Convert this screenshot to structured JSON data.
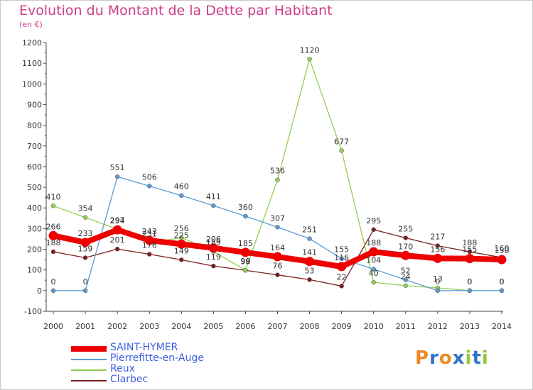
{
  "title": "Evolution du Montant de la Dette par Habitant",
  "unit": "(en €)",
  "logo": "Proxiti",
  "chart_data": {
    "type": "line",
    "title": "Evolution du Montant de la Dette par Habitant",
    "ylabel": "(en €)",
    "xlabel": "",
    "x": [
      "2000",
      "2001",
      "2002",
      "2003",
      "2004",
      "2005",
      "2006",
      "2007",
      "2008",
      "2009",
      "2010",
      "2011",
      "2012",
      "2013",
      "2014"
    ],
    "ylim": [
      -100,
      1200
    ],
    "yticks": [
      "-100",
      "0",
      "100",
      "200",
      "300",
      "400",
      "500",
      "600",
      "700",
      "800",
      "900",
      "1000",
      "1100",
      "1200"
    ],
    "grid": false,
    "legend_position": "bottom-left",
    "series": [
      {
        "name": "SAINT-HYMER",
        "color": "#ee0000",
        "values": [
          266,
          233,
          294,
          243,
          225,
          206,
          185,
          164,
          141,
          116,
          188,
          170,
          156,
          155,
          150
        ],
        "labels": [
          "266",
          "233",
          "294",
          "243",
          "225",
          "206",
          "185",
          "164",
          "141",
          "116",
          "188",
          "170",
          "156",
          "155",
          "150"
        ]
      },
      {
        "name": "Pierrefitte-en-Auge",
        "color": "#5b9bd5",
        "values": [
          0,
          0,
          551,
          506,
          460,
          411,
          360,
          307,
          251,
          155,
          104,
          52,
          0,
          0,
          0
        ],
        "labels": [
          "0",
          "0",
          "551",
          "506",
          "460",
          "411",
          "360",
          "307",
          "251",
          "155",
          "104",
          "52",
          "0",
          "0",
          "0"
        ]
      },
      {
        "name": "Reux",
        "color": "#92d050",
        "values": [
          410,
          354,
          297,
          231,
          256,
          189,
          99,
          536,
          1120,
          677,
          40,
          24,
          13,
          0,
          0
        ],
        "labels": [
          "410",
          "354",
          "297",
          "231",
          "256",
          "189",
          "99",
          "536",
          "1120",
          "677",
          "40",
          "24",
          "13",
          "0",
          "0"
        ]
      },
      {
        "name": "Clarbec",
        "color": "#7b1e1e",
        "values": [
          188,
          159,
          201,
          176,
          149,
          119,
          98,
          76,
          53,
          22,
          295,
          255,
          217,
          188,
          160
        ],
        "labels": [
          "188",
          "159",
          "201",
          "176",
          "149",
          "119",
          "98",
          "76",
          "53",
          "22",
          "295",
          "255",
          "217",
          "188",
          "160"
        ]
      }
    ]
  }
}
